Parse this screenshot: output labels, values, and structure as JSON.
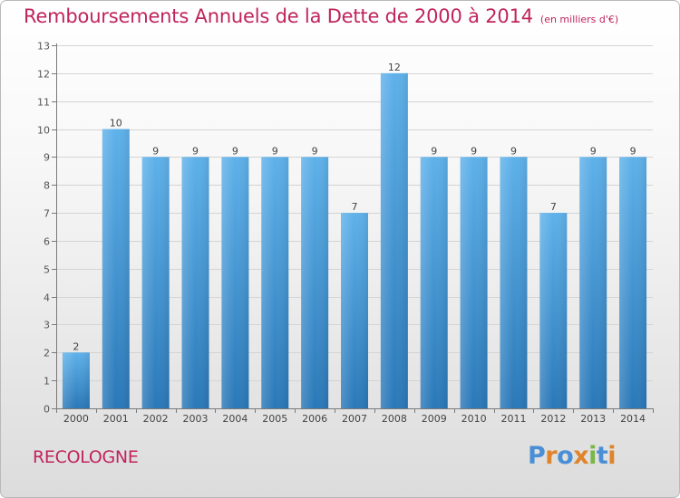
{
  "title": {
    "main": "Remboursements Annuels de la Dette de 2000 à 2014",
    "unit": "(en milliers d'€)"
  },
  "commune": "RECOLOGNE",
  "logo": {
    "text": "Proxiti",
    "letter_colors": [
      "#4a8fd6",
      "#e0842c",
      "#4a8fd6",
      "#e0842c",
      "#7ab648",
      "#4a8fd6",
      "#e0842c"
    ]
  },
  "chart_data": {
    "type": "bar",
    "categories": [
      "2000",
      "2001",
      "2002",
      "2003",
      "2004",
      "2005",
      "2006",
      "2007",
      "2008",
      "2009",
      "2010",
      "2011",
      "2012",
      "2013",
      "2014"
    ],
    "values": [
      2,
      10,
      9,
      9,
      9,
      9,
      9,
      7,
      12,
      9,
      9,
      9,
      7,
      9,
      9
    ],
    "data_labels": [
      "2",
      "10",
      "9",
      "9",
      "9",
      "9",
      "9",
      "7",
      "12",
      "9",
      "9",
      "9",
      "7",
      "9",
      "9"
    ],
    "y_ticks": [
      0,
      1,
      2,
      3,
      4,
      5,
      6,
      7,
      8,
      9,
      10,
      11,
      12,
      13
    ],
    "ylim": [
      0,
      13
    ],
    "grid": true,
    "bar_color_top": "#5eb1ea",
    "bar_color_bottom": "#2a78b8",
    "title": "Remboursements Annuels de la Dette de 2000 à 2014",
    "xlabel": "",
    "ylabel": ""
  }
}
